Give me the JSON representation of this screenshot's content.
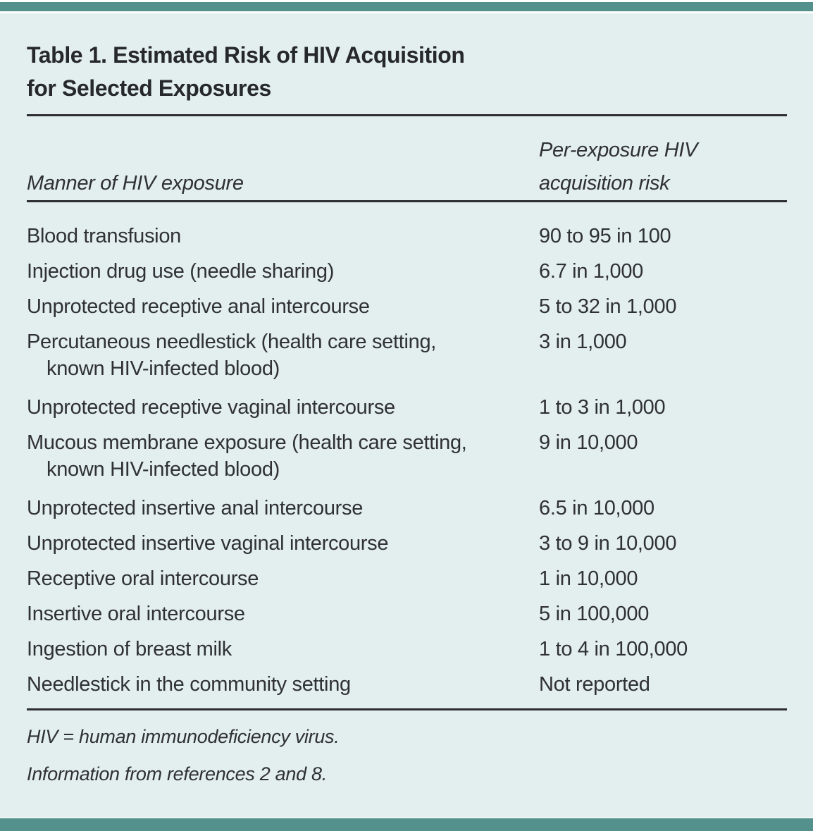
{
  "header": {
    "title": "Table 1. Estimated Risk of HIV Acquisition\nfor Selected Exposures"
  },
  "table": {
    "col1_header": "Manner of HIV exposure",
    "col2_header": "Per-exposure HIV\nacquisition risk",
    "rows": [
      {
        "exposure": "Blood transfusion",
        "risk": "90 to 95 in 100"
      },
      {
        "exposure": "Injection drug use (needle sharing)",
        "risk": "6.7 in 1,000"
      },
      {
        "exposure": "Unprotected receptive anal intercourse",
        "risk": "5 to 32 in 1,000"
      },
      {
        "exposure": "Percutaneous needlestick (health care setting,\nknown HIV-infected blood)",
        "risk": "3 in 1,000"
      },
      {
        "exposure": "Unprotected receptive vaginal intercourse",
        "risk": "1 to 3 in 1,000"
      },
      {
        "exposure": "Mucous membrane exposure (health care setting,\nknown HIV-infected blood)",
        "risk": "9 in 10,000"
      },
      {
        "exposure": "Unprotected insertive anal intercourse",
        "risk": "6.5 in 10,000"
      },
      {
        "exposure": "Unprotected insertive vaginal intercourse",
        "risk": "3 to 9 in 10,000"
      },
      {
        "exposure": "Receptive oral intercourse",
        "risk": "1 in 10,000"
      },
      {
        "exposure": "Insertive oral intercourse",
        "risk": "5 in 100,000"
      },
      {
        "exposure": "Ingestion of breast milk",
        "risk": "1 to 4 in 100,000"
      },
      {
        "exposure": "Needlestick in the community setting",
        "risk": "Not reported"
      }
    ]
  },
  "footnotes": [
    "HIV = human immunodeficiency virus.",
    "Information from references 2 and 8."
  ],
  "colors": {
    "accent_teal": "#54918d",
    "panel_background": "#e3eeee",
    "text": "#2f3133",
    "rule": "#2e2e30"
  }
}
